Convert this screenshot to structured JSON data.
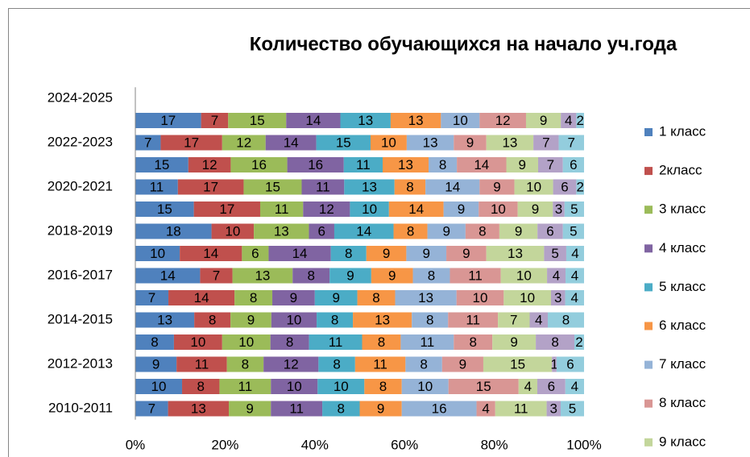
{
  "chart_data": {
    "type": "bar_100_stacked_horizontal",
    "title": "Количество обучающихся на начало уч.года",
    "categories": [
      "2010-2011",
      null,
      "2012-2013",
      null,
      "2014-2015",
      null,
      "2016-2017",
      null,
      "2018-2019",
      null,
      "2020-2021",
      null,
      "2022-2023",
      null,
      "2024-2025"
    ],
    "series": [
      {
        "name": "1 класс",
        "color": "#4f81bd",
        "values": [
          7,
          10,
          9,
          8,
          13,
          7,
          14,
          10,
          18,
          15,
          11,
          15,
          7,
          17,
          null
        ]
      },
      {
        "name": "2класс",
        "color": "#c0504d",
        "values": [
          13,
          8,
          11,
          10,
          8,
          14,
          7,
          14,
          10,
          17,
          17,
          12,
          17,
          7,
          null
        ]
      },
      {
        "name": "3 класс",
        "color": "#9bbb59",
        "values": [
          9,
          11,
          8,
          10,
          9,
          8,
          13,
          6,
          13,
          11,
          15,
          16,
          12,
          15,
          null
        ]
      },
      {
        "name": "4 класс",
        "color": "#8064a2",
        "values": [
          11,
          10,
          12,
          8,
          10,
          9,
          8,
          14,
          6,
          12,
          11,
          16,
          14,
          14,
          null
        ]
      },
      {
        "name": "5 класс",
        "color": "#4bacc6",
        "values": [
          8,
          10,
          8,
          11,
          8,
          9,
          9,
          8,
          14,
          10,
          13,
          11,
          15,
          13,
          null
        ]
      },
      {
        "name": "6 класс",
        "color": "#f79646",
        "values": [
          9,
          8,
          11,
          8,
          13,
          8,
          9,
          9,
          8,
          14,
          8,
          13,
          10,
          13,
          null
        ]
      },
      {
        "name": "7 класс",
        "color": "#95b3d7",
        "values": [
          16,
          10,
          8,
          11,
          8,
          13,
          8,
          9,
          9,
          9,
          14,
          8,
          13,
          10,
          null
        ]
      },
      {
        "name": "8 класс",
        "color": "#d99694",
        "values": [
          4,
          15,
          9,
          8,
          11,
          10,
          11,
          9,
          8,
          10,
          9,
          14,
          9,
          12,
          null
        ]
      },
      {
        "name": "9 класс",
        "color": "#c3d69b",
        "values": [
          11,
          4,
          15,
          9,
          7,
          10,
          10,
          13,
          9,
          9,
          10,
          9,
          13,
          9,
          null
        ]
      },
      {
        "color": "#b3a2c7",
        "values": [
          3,
          6,
          1,
          8,
          4,
          3,
          4,
          5,
          6,
          3,
          6,
          7,
          7,
          4,
          null
        ]
      },
      {
        "color": "#93cddd",
        "values": [
          5,
          4,
          6,
          2,
          8,
          4,
          4,
          4,
          5,
          5,
          2,
          6,
          7,
          2,
          null
        ]
      }
    ],
    "xlim": [
      0,
      100
    ],
    "xticks": [
      {
        "value": 0,
        "label": "0%"
      },
      {
        "value": 20,
        "label": "20%"
      },
      {
        "value": 40,
        "label": "40%"
      },
      {
        "value": 60,
        "label": "60%"
      },
      {
        "value": 80,
        "label": "80%"
      },
      {
        "value": 100,
        "label": "100%"
      }
    ],
    "legend": "right"
  }
}
